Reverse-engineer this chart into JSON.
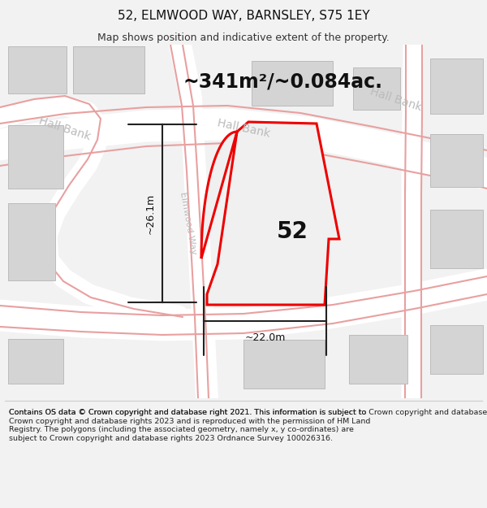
{
  "title": "52, ELMWOOD WAY, BARNSLEY, S75 1EY",
  "subtitle": "Map shows position and indicative extent of the property.",
  "area_text": "~341m²/~0.084ac.",
  "number_label": "52",
  "dim_horizontal": "~22.0m",
  "dim_vertical": "~26.1m",
  "footer_text": "Contains OS data © Crown copyright and database right 2021. This information is subject to Crown copyright and database rights 2023 and is reproduced with the permission of HM Land Registry. The polygons (including the associated geometry, namely x, y co-ordinates) are subject to Crown copyright and database rights 2023 Ordnance Survey 100026316.",
  "bg_color": "#f2f2f2",
  "map_bg": "#ebebeb",
  "road_white": "#ffffff",
  "building_color": "#d4d4d4",
  "building_edge": "#bbbbbb",
  "pink_road": "#e8a0a0",
  "plot_fill": "#f0f0f0",
  "plot_edge": "#ee0000",
  "plot_edge_width": 2.2,
  "dim_line_color": "#222222",
  "street_label_color": "#bbbbbb",
  "title_fontsize": 11,
  "subtitle_fontsize": 9,
  "area_fontsize": 17,
  "number_fontsize": 20,
  "dim_fontsize": 9,
  "street_fontsize": 10
}
